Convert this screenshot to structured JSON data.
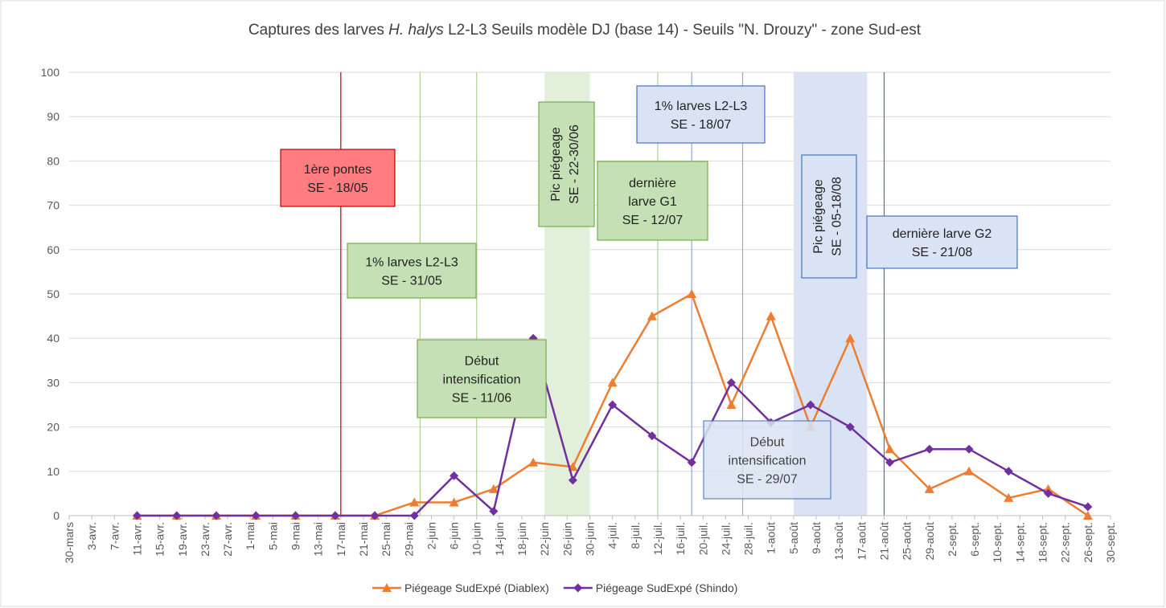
{
  "chart_data": {
    "type": "line",
    "title": [
      "Captures des larves ",
      "H. halys",
      " L2-L3 Seuils modèle DJ (base 14) - Seuils \"N. Drouzy\" - zone Sud-est"
    ],
    "x": [
      "04-11",
      "04-18",
      "04-25",
      "05-02",
      "05-09",
      "05-16",
      "05-23",
      "05-30",
      "06-06",
      "06-13",
      "06-20",
      "06-27",
      "07-04",
      "07-11",
      "07-18",
      "07-25",
      "08-01",
      "08-08",
      "08-15",
      "08-22",
      "08-29",
      "09-05",
      "09-12",
      "09-19",
      "09-26"
    ],
    "xlim": [
      "03-30",
      "09-30"
    ],
    "xticks": [
      {
        "value": "03-30",
        "label": "30-mars"
      },
      {
        "value": "04-03",
        "label": "3-avr."
      },
      {
        "value": "04-07",
        "label": "7-avr."
      },
      {
        "value": "04-11",
        "label": "11-avr."
      },
      {
        "value": "04-15",
        "label": "15-avr."
      },
      {
        "value": "04-19",
        "label": "19-avr."
      },
      {
        "value": "04-23",
        "label": "23-avr."
      },
      {
        "value": "04-27",
        "label": "27-avr."
      },
      {
        "value": "05-01",
        "label": "1-mai"
      },
      {
        "value": "05-05",
        "label": "5-mai"
      },
      {
        "value": "05-09",
        "label": "9-mai"
      },
      {
        "value": "05-13",
        "label": "13-mai"
      },
      {
        "value": "05-17",
        "label": "17-mai"
      },
      {
        "value": "05-21",
        "label": "21-mai"
      },
      {
        "value": "05-25",
        "label": "25-mai"
      },
      {
        "value": "05-29",
        "label": "29-mai"
      },
      {
        "value": "06-02",
        "label": "2-juin"
      },
      {
        "value": "06-06",
        "label": "6-juin"
      },
      {
        "value": "06-10",
        "label": "10-juin"
      },
      {
        "value": "06-14",
        "label": "14-juin"
      },
      {
        "value": "06-18",
        "label": "18-juin"
      },
      {
        "value": "06-22",
        "label": "22-juin"
      },
      {
        "value": "06-26",
        "label": "26-juin"
      },
      {
        "value": "06-30",
        "label": "30-juin"
      },
      {
        "value": "07-04",
        "label": "4-juil."
      },
      {
        "value": "07-08",
        "label": "8-juil."
      },
      {
        "value": "07-12",
        "label": "12-juil."
      },
      {
        "value": "07-16",
        "label": "16-juil."
      },
      {
        "value": "07-20",
        "label": "20-juil."
      },
      {
        "value": "07-24",
        "label": "24-juil."
      },
      {
        "value": "07-28",
        "label": "28-juil."
      },
      {
        "value": "08-01",
        "label": "1-août"
      },
      {
        "value": "08-05",
        "label": "5-août"
      },
      {
        "value": "08-09",
        "label": "9-août"
      },
      {
        "value": "08-13",
        "label": "13-août"
      },
      {
        "value": "08-17",
        "label": "17-août"
      },
      {
        "value": "08-21",
        "label": "21-août"
      },
      {
        "value": "08-25",
        "label": "25-août"
      },
      {
        "value": "08-29",
        "label": "29-août"
      },
      {
        "value": "09-02",
        "label": "2-sept."
      },
      {
        "value": "09-06",
        "label": "6-sept."
      },
      {
        "value": "09-10",
        "label": "10-sept."
      },
      {
        "value": "09-14",
        "label": "14-sept."
      },
      {
        "value": "09-18",
        "label": "18-sept."
      },
      {
        "value": "09-22",
        "label": "22-sept."
      },
      {
        "value": "09-26",
        "label": "26-sept."
      },
      {
        "value": "09-30",
        "label": "30-sept."
      }
    ],
    "ylim": [
      0,
      100
    ],
    "yticks": [
      0,
      10,
      20,
      30,
      40,
      50,
      60,
      70,
      80,
      90,
      100
    ],
    "grid": true,
    "legend": "bottom",
    "series": [
      {
        "name": "Piégeage SudExpé (Diablex)",
        "color": "#ed7d31",
        "marker": "triangle",
        "values": [
          0,
          0,
          0,
          0,
          0,
          0,
          0,
          3,
          3,
          6,
          12,
          11,
          30,
          45,
          50,
          25,
          45,
          20,
          40,
          15,
          6,
          10,
          4,
          6,
          0
        ]
      },
      {
        "name": "Piégeage SudExpé (Shindo)",
        "color": "#7030a0",
        "marker": "diamond",
        "values": [
          0,
          0,
          0,
          0,
          0,
          0,
          0,
          0,
          9,
          1,
          40,
          8,
          25,
          18,
          12,
          30,
          21,
          25,
          20,
          12,
          15,
          15,
          10,
          5,
          2
        ]
      }
    ],
    "bands": [
      {
        "from": "06-22",
        "to": "06-30",
        "color": "#e2efda"
      },
      {
        "from": "08-05",
        "to": "08-18",
        "color": "#dae3f3"
      }
    ],
    "vlines": [
      {
        "x": "05-17",
        "color": "#c00000"
      },
      {
        "x": "05-31",
        "color": "#a9d18e"
      },
      {
        "x": "06-10",
        "color": "#a9d18e"
      },
      {
        "x": "07-12",
        "color": "#a9d18e"
      },
      {
        "x": "07-18",
        "color": "#8faadc"
      },
      {
        "x": "07-27",
        "color": "#8faadc"
      },
      {
        "x": "08-21",
        "color": "#4472c4"
      }
    ],
    "annotations": [
      {
        "lines": [
          "1ère pontes",
          "SE - 18/05"
        ],
        "fill": "#ff7c80",
        "border": "#c00000"
      },
      {
        "lines": [
          "1% larves L2-L3",
          "SE - 31/05"
        ],
        "fill": "#c5e0b4",
        "border": "#70ad47"
      },
      {
        "lines": [
          "Pic piégeage",
          "SE - 22-30/06"
        ],
        "fill": "#c5e0b4",
        "border": "#70ad47",
        "rotated": true
      },
      {
        "lines": [
          "dernière",
          "larve G1",
          "SE - 12/07"
        ],
        "fill": "#c5e0b4",
        "border": "#70ad47"
      },
      {
        "lines": [
          "1% larves L2-L3",
          "SE - 18/07"
        ],
        "fill": "#dae3f3",
        "border": "#4472c4"
      },
      {
        "lines": [
          "Pic piégeage",
          "SE - 05-18/08"
        ],
        "fill": "#dae3f3",
        "border": "#4472c4",
        "rotated": true
      },
      {
        "lines": [
          "dernière larve G2",
          "SE - 21/08"
        ],
        "fill": "#dae3f3",
        "border": "#4472c4"
      },
      {
        "lines": [
          "Début",
          "intensification",
          "SE - 11/06"
        ],
        "fill": "#c5e0b4",
        "border": "#70ad47"
      },
      {
        "lines": [
          "Début",
          "intensification",
          "SE - 29/07"
        ],
        "fill": "#dae3f3",
        "border": "#4472c4"
      }
    ]
  }
}
